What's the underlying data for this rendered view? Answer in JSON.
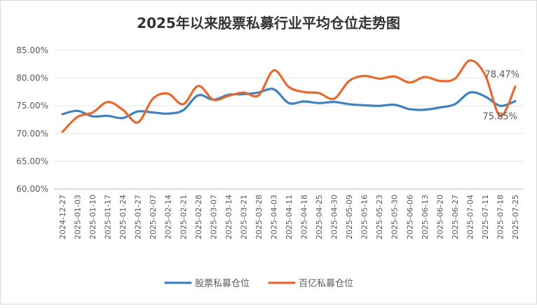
{
  "chart_data": {
    "type": "line",
    "title": "2025年以来股票私募行业平均仓位走势图",
    "xlabel": "",
    "ylabel": "",
    "ylim": [
      60,
      85
    ],
    "yticks": [
      "60.00%",
      "65.00%",
      "70.00%",
      "75.00%",
      "80.00%",
      "85.00%"
    ],
    "grid": true,
    "legend_position": "bottom",
    "x": [
      "2024-12-27",
      "2025-01-03",
      "2025-01-10",
      "2025-01-17",
      "2025-01-24",
      "2025-01-27",
      "2025-02-07",
      "2025-02-14",
      "2025-02-21",
      "2025-02-28",
      "2025-03-07",
      "2025-03-14",
      "2025-03-21",
      "2025-03-28",
      "2025-04-03",
      "2025-04-11",
      "2025-04-18",
      "2025-04-25",
      "2025-04-30",
      "2025-05-09",
      "2025-05-16",
      "2025-05-23",
      "2025-05-30",
      "2025-06-06",
      "2025-06-13",
      "2025-06-20",
      "2025-06-27",
      "2025-07-04",
      "2025-07-11",
      "2025-07-18",
      "2025-07-25"
    ],
    "series": [
      {
        "name": "股票私募仓位",
        "color": "#3e82c0",
        "values": [
          73.5,
          74.1,
          73.1,
          73.2,
          72.8,
          74.0,
          73.8,
          73.6,
          74.2,
          76.9,
          76.1,
          77.0,
          77.1,
          77.4,
          78.0,
          75.5,
          75.8,
          75.5,
          75.7,
          75.3,
          75.1,
          75.0,
          75.2,
          74.4,
          74.3,
          74.7,
          75.3,
          77.4,
          76.7,
          75.0,
          75.85
        ]
      },
      {
        "name": "百亿私募仓位",
        "color": "#e8692f",
        "values": [
          70.3,
          73.0,
          73.8,
          75.7,
          74.3,
          72.0,
          76.3,
          77.2,
          75.3,
          78.6,
          76.1,
          76.8,
          77.4,
          76.9,
          81.4,
          78.4,
          77.5,
          77.3,
          76.3,
          79.5,
          80.4,
          79.9,
          80.3,
          79.2,
          80.2,
          79.5,
          79.9,
          83.2,
          80.6,
          73.2,
          78.47
        ]
      }
    ],
    "annotations": [
      "78.47%",
      "75.85%"
    ]
  }
}
